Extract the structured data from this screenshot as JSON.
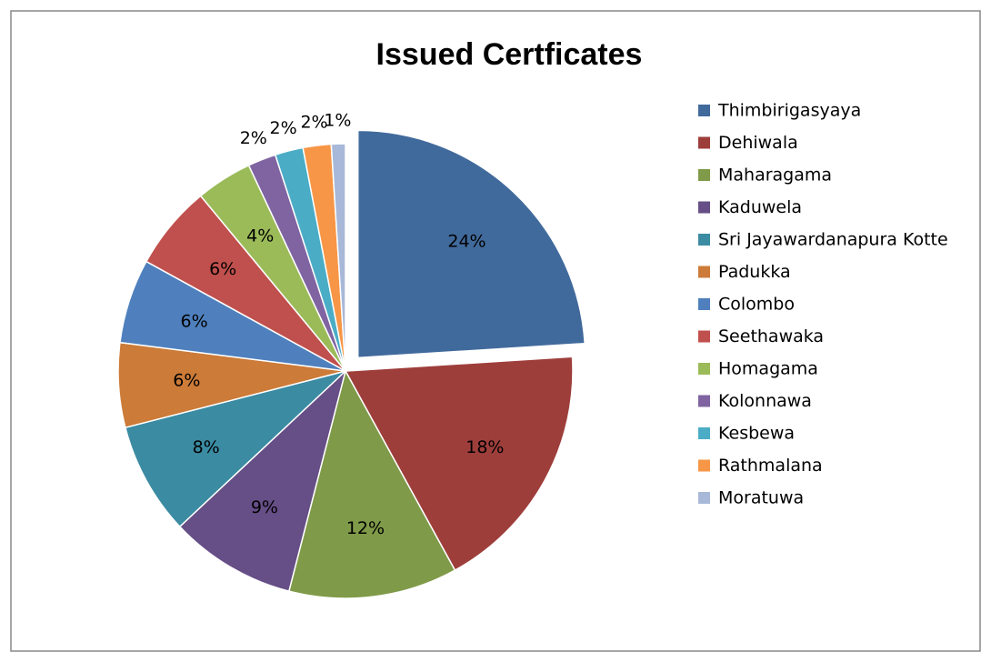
{
  "chart_data": {
    "type": "pie",
    "title": "Issued Certficates",
    "categories": [
      "Thimbirigasyaya",
      "Dehiwala",
      "Maharagama",
      "Kaduwela",
      "Sri Jayawardanapura Kotte",
      "Padukka",
      "Colombo",
      "Seethawaka",
      "Homagama",
      "Kolonnawa",
      "Kesbewa",
      "Rathmalana",
      "Moratuwa"
    ],
    "values": [
      24,
      18,
      12,
      9,
      8,
      6,
      6,
      6,
      4,
      2,
      2,
      2,
      1
    ],
    "value_labels": [
      "24%",
      "18%",
      "12%",
      "9%",
      "8%",
      "6%",
      "6%",
      "6%",
      "4%",
      "2%",
      "2%",
      "2%",
      "1%"
    ],
    "colors": [
      "#416a9c",
      "#9e3e3b",
      "#7f9a48",
      "#664e86",
      "#3b8ba2",
      "#cc7b38",
      "#4f80bd",
      "#c0504d",
      "#9bbb59",
      "#8064a2",
      "#4bacc6",
      "#f79646",
      "#a8b8d8"
    ],
    "exploded": [
      0
    ],
    "legend": "right"
  }
}
